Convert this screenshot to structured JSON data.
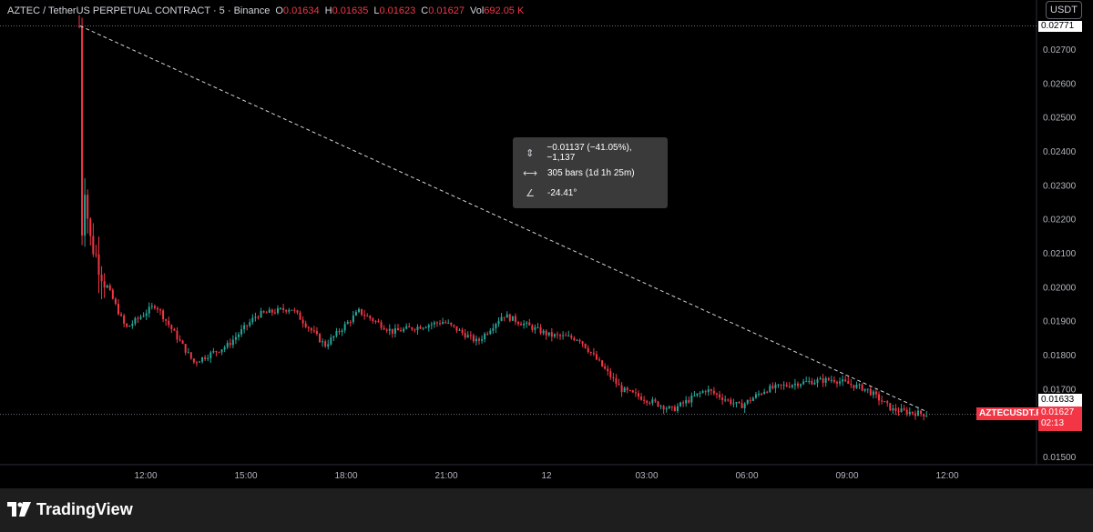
{
  "header": {
    "symbol_line": "AZTEC / TetherUS PERPETUAL CONTRACT · 5 · Binance",
    "ohlc": [
      {
        "key": "O",
        "value": "0.01634"
      },
      {
        "key": "H",
        "value": "0.01635"
      },
      {
        "key": "L",
        "value": "0.01623"
      },
      {
        "key": "C",
        "value": "0.01627"
      },
      {
        "key": "Vol",
        "value": "692.05 K"
      }
    ],
    "currency_button": "USDT"
  },
  "measure_tooltip": {
    "price_change": "−0.01137 (−41.05%), −1,137",
    "bars_range": "305 bars (1d 1h 25m)",
    "angle": "-24.41°",
    "icons": [
      "price-range-icon",
      "bars-range-icon",
      "angle-icon"
    ]
  },
  "price_axis": {
    "ticks": [
      "0.02700",
      "0.02600",
      "0.02500",
      "0.02400",
      "0.02300",
      "0.02200",
      "0.02100",
      "0.02000",
      "0.01900",
      "0.01800",
      "0.01700",
      "0.01500"
    ],
    "top_price_label": "0.02771",
    "open_price_label": "0.01633",
    "last_price_label": "0.01627",
    "countdown": "02:13",
    "ticker_badge": "AZTECUSDT.P"
  },
  "time_axis": {
    "ticks": [
      "12:00",
      "15:00",
      "18:00",
      "21:00",
      "12",
      "03:00",
      "06:00",
      "09:00",
      "12:00"
    ]
  },
  "chart_data": {
    "type": "candlestick",
    "symbol": "AZTECUSDT.P",
    "interval": "5",
    "ylim": [
      0.0148,
      0.0279
    ],
    "trend_line": {
      "from": {
        "time": "10:45",
        "price": 0.02771
      },
      "to": {
        "time": "11:40",
        "price": 0.01634
      }
    },
    "profile": [
      {
        "t": 0.0,
        "p": 0.02771
      },
      {
        "t": 0.002,
        "p": 0.021
      },
      {
        "t": 0.006,
        "p": 0.0232
      },
      {
        "t": 0.012,
        "p": 0.0215
      },
      {
        "t": 0.03,
        "p": 0.0202
      },
      {
        "t": 0.055,
        "p": 0.0188
      },
      {
        "t": 0.09,
        "p": 0.0195
      },
      {
        "t": 0.135,
        "p": 0.0178
      },
      {
        "t": 0.175,
        "p": 0.0183
      },
      {
        "t": 0.21,
        "p": 0.0192
      },
      {
        "t": 0.25,
        "p": 0.0194
      },
      {
        "t": 0.29,
        "p": 0.0183
      },
      {
        "t": 0.33,
        "p": 0.0193
      },
      {
        "t": 0.37,
        "p": 0.0187
      },
      {
        "t": 0.43,
        "p": 0.019
      },
      {
        "t": 0.47,
        "p": 0.0184
      },
      {
        "t": 0.5,
        "p": 0.0192
      },
      {
        "t": 0.555,
        "p": 0.0186
      },
      {
        "t": 0.59,
        "p": 0.0185
      },
      {
        "t": 0.61,
        "p": 0.0179
      },
      {
        "t": 0.64,
        "p": 0.017
      },
      {
        "t": 0.7,
        "p": 0.0164
      },
      {
        "t": 0.74,
        "p": 0.017
      },
      {
        "t": 0.78,
        "p": 0.0165
      },
      {
        "t": 0.81,
        "p": 0.017
      },
      {
        "t": 0.85,
        "p": 0.0172
      },
      {
        "t": 0.89,
        "p": 0.0173
      },
      {
        "t": 0.93,
        "p": 0.017
      },
      {
        "t": 0.96,
        "p": 0.0164
      },
      {
        "t": 1.0,
        "p": 0.01627
      }
    ],
    "colors": {
      "up": "#26a69a",
      "down": "#f23645",
      "trend": "#d1d4dc",
      "grid": "#2a2e39"
    }
  }
}
